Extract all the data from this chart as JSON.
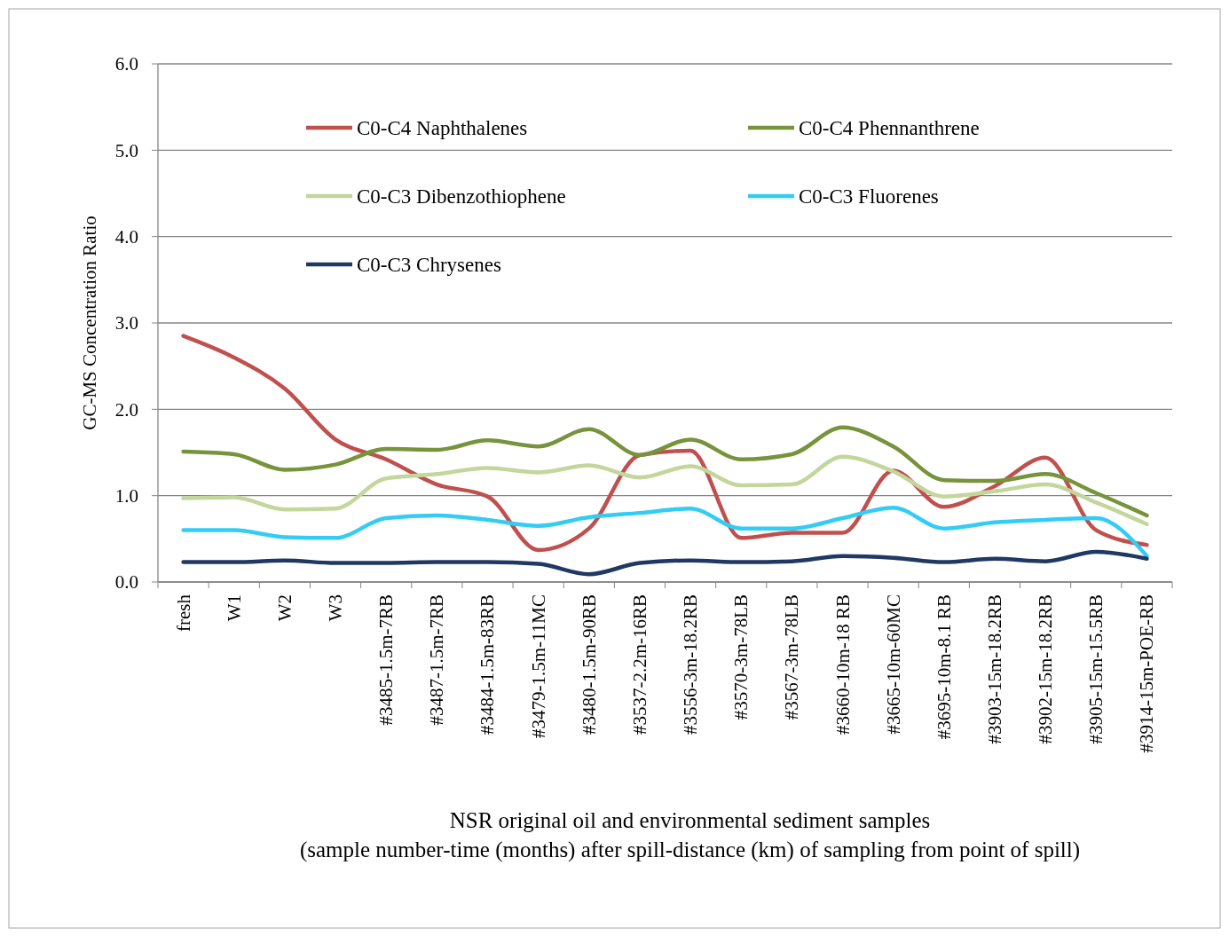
{
  "chart_data": {
    "type": "line",
    "xlabel": "NSR original oil and environmental sediment samples\n(sample number-time (months) after spill-distance (km) of sampling from point of spill)",
    "ylabel": "GC-MS Concentration Ratio",
    "categories": [
      "fresh",
      "W1",
      "W2",
      "W3",
      "#3485-1.5m-7RB",
      "#3487-1.5m-7RB",
      "#3484-1.5m-83RB",
      "#3479-1.5m-11MC",
      "#3480-1.5m-90RB",
      "#3537-2.2m-16RB",
      "#3556-3m-18.2RB",
      "#3570-3m-78LB",
      "#3567-3m-78LB",
      "#3660-10m-18 RB",
      "#3665-10m-60MC",
      "#3695-10m-8.1 RB",
      "#3903-15m-18.2RB",
      "#3902-15m-18.2RB",
      "#3905-15m-15.5RB",
      "#3914-15m-POE-RB"
    ],
    "series": [
      {
        "name": "C0-C4 Naphthalenes",
        "color": "#c0504d",
        "values": [
          2.85,
          2.6,
          2.24,
          1.65,
          1.42,
          1.13,
          0.99,
          0.37,
          0.62,
          1.47,
          1.52,
          0.51,
          0.57,
          0.57,
          1.29,
          0.87,
          1.11,
          1.44,
          0.6,
          0.43
        ]
      },
      {
        "name": "C0-C4 Phennanthrene",
        "color": "#77933c",
        "values": [
          1.51,
          1.48,
          1.3,
          1.36,
          1.54,
          1.53,
          1.64,
          1.57,
          1.77,
          1.47,
          1.65,
          1.42,
          1.48,
          1.79,
          1.57,
          1.18,
          1.17,
          1.25,
          1.03,
          0.77
        ]
      },
      {
        "name": "C0-C3 Dibenzothiophene",
        "color": "#c3d69b",
        "values": [
          0.97,
          0.98,
          0.84,
          0.85,
          1.2,
          1.25,
          1.32,
          1.27,
          1.35,
          1.21,
          1.34,
          1.12,
          1.13,
          1.45,
          1.28,
          0.99,
          1.05,
          1.13,
          0.92,
          0.67
        ]
      },
      {
        "name": "C0-C3 Fluorenes",
        "color": "#33ccf5",
        "values": [
          0.6,
          0.6,
          0.52,
          0.51,
          0.74,
          0.77,
          0.72,
          0.65,
          0.75,
          0.8,
          0.85,
          0.62,
          0.62,
          0.74,
          0.86,
          0.62,
          0.69,
          0.72,
          0.74,
          0.3
        ]
      },
      {
        "name": "C0-C3 Chrysenes",
        "color": "#1f3864",
        "values": [
          0.23,
          0.23,
          0.25,
          0.22,
          0.22,
          0.23,
          0.23,
          0.21,
          0.09,
          0.22,
          0.25,
          0.23,
          0.24,
          0.3,
          0.28,
          0.23,
          0.27,
          0.24,
          0.35,
          0.27
        ]
      }
    ],
    "ylim": [
      0,
      6
    ],
    "yticks": [
      {
        "value": 0,
        "label": "0.0"
      },
      {
        "value": 1,
        "label": "1.0"
      },
      {
        "value": 2,
        "label": "2.0"
      },
      {
        "value": 3,
        "label": "3.0"
      },
      {
        "value": 4,
        "label": "4.0"
      },
      {
        "value": 5,
        "label": "5.0"
      },
      {
        "value": 6,
        "label": "6.0"
      }
    ],
    "grid": "y",
    "legend": "top",
    "marker": "none",
    "line_style": "solid"
  }
}
